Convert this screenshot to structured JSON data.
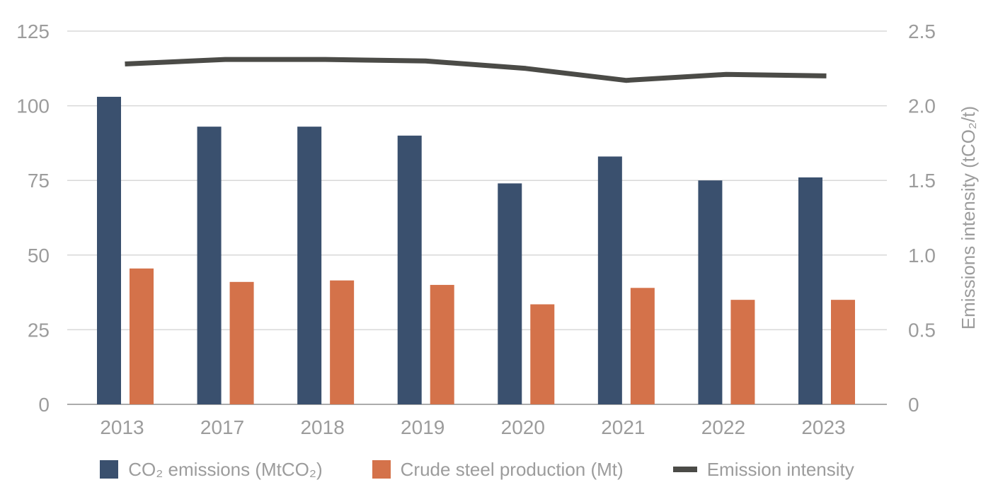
{
  "chart_data": {
    "type": "bar+line combo",
    "categories": [
      "2013",
      "2017",
      "2018",
      "2019",
      "2020",
      "2021",
      "2022",
      "2023"
    ],
    "series": [
      {
        "name": "CO₂ emissions (MtCO₂)",
        "type": "bar",
        "axis": "left",
        "color": "#3A506E",
        "values": [
          103,
          93,
          93,
          90,
          74,
          83,
          75,
          76
        ]
      },
      {
        "name": "Crude steel production (Mt)",
        "type": "bar",
        "axis": "left",
        "color": "#D4724A",
        "values": [
          45.5,
          41,
          41.5,
          40,
          33.5,
          39,
          35,
          35
        ]
      },
      {
        "name": "Emission intensity",
        "type": "line",
        "axis": "right",
        "color": "#4B4B47",
        "values": [
          2.28,
          2.31,
          2.31,
          2.3,
          2.25,
          2.17,
          2.21,
          2.2
        ]
      }
    ],
    "left_axis": {
      "min": 0,
      "max": 125,
      "ticks": [
        "0",
        "25",
        "50",
        "75",
        "100",
        "125"
      ],
      "label": ""
    },
    "right_axis": {
      "min": 0,
      "max": 2.5,
      "ticks": [
        "0",
        "0.5",
        "1.0",
        "1.5",
        "2.0",
        "2.5"
      ],
      "label": "Emissions intensity (tCO₂/t)"
    },
    "grid": true,
    "legend_position": "bottom"
  },
  "colors": {
    "background": "#FFFFFF",
    "gridline": "#D8D8D8",
    "axis_line": "#ABABAB",
    "tick_text": "#9C9C9C",
    "bar_blue": "#3A506E",
    "bar_orange": "#D4724A",
    "line_dark": "#4B4B47"
  }
}
